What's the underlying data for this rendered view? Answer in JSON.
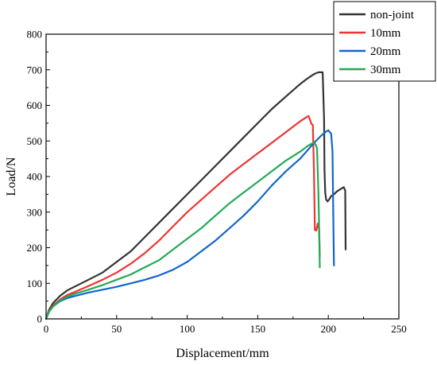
{
  "chart_data": {
    "type": "line",
    "xlabel": "Displacement/mm",
    "ylabel": "Load/N",
    "xlim": [
      0,
      250
    ],
    "ylim": [
      0,
      800
    ],
    "xticks": [
      0,
      50,
      100,
      150,
      200,
      250
    ],
    "yticks": [
      0,
      100,
      200,
      300,
      400,
      500,
      600,
      700,
      800
    ],
    "grid": false,
    "legend_position": "top-right",
    "series": [
      {
        "name": "non-joint",
        "color": "#333333",
        "x": [
          0,
          2,
          5,
          10,
          15,
          20,
          30,
          40,
          50,
          60,
          70,
          80,
          90,
          100,
          110,
          120,
          130,
          140,
          150,
          160,
          170,
          180,
          185,
          190,
          193,
          196,
          197,
          197.3,
          197.8,
          198.5,
          199.5,
          200.5,
          202,
          204,
          206,
          208,
          210,
          211,
          212,
          212.3
        ],
        "y": [
          0,
          25,
          45,
          65,
          80,
          90,
          110,
          130,
          160,
          190,
          230,
          270,
          310,
          350,
          390,
          430,
          470,
          510,
          550,
          590,
          625,
          660,
          675,
          688,
          693,
          693,
          560,
          420,
          355,
          335,
          330,
          335,
          345,
          350,
          358,
          363,
          368,
          370,
          360,
          195
        ]
      },
      {
        "name": "10mm",
        "color": "#ee3333",
        "x": [
          0,
          2,
          5,
          10,
          15,
          20,
          30,
          40,
          50,
          60,
          70,
          80,
          90,
          100,
          110,
          120,
          130,
          140,
          150,
          160,
          170,
          180,
          185,
          186,
          187,
          188,
          189,
          189.8,
          190.5,
          191.5,
          192.5,
          193,
          193.5,
          194
        ],
        "y": [
          0,
          22,
          38,
          55,
          67,
          75,
          92,
          110,
          130,
          155,
          185,
          220,
          260,
          300,
          335,
          370,
          405,
          435,
          465,
          495,
          525,
          555,
          568,
          570,
          560,
          548,
          545,
          420,
          250,
          248,
          268,
          265,
          250,
          175
        ]
      },
      {
        "name": "20mm",
        "color": "#1166cc",
        "x": [
          0,
          2,
          5,
          10,
          15,
          20,
          30,
          40,
          50,
          60,
          70,
          80,
          90,
          100,
          110,
          120,
          130,
          140,
          150,
          160,
          170,
          180,
          190,
          195,
          198,
          200,
          202,
          203,
          203.5,
          204
        ],
        "y": [
          0,
          20,
          35,
          50,
          58,
          64,
          74,
          82,
          90,
          100,
          110,
          122,
          138,
          160,
          190,
          220,
          255,
          290,
          330,
          375,
          415,
          450,
          495,
          515,
          525,
          530,
          520,
          470,
          300,
          150
        ]
      },
      {
        "name": "30mm",
        "color": "#22aa55",
        "x": [
          0,
          2,
          5,
          10,
          15,
          20,
          30,
          40,
          50,
          60,
          70,
          80,
          90,
          100,
          110,
          120,
          130,
          140,
          150,
          160,
          170,
          180,
          185,
          188,
          190,
          191,
          192,
          193,
          193.5,
          194
        ],
        "y": [
          0,
          20,
          35,
          52,
          62,
          70,
          82,
          95,
          110,
          125,
          145,
          165,
          195,
          225,
          255,
          290,
          325,
          355,
          385,
          415,
          445,
          470,
          485,
          492,
          495,
          490,
          480,
          350,
          250,
          145
        ]
      }
    ]
  }
}
